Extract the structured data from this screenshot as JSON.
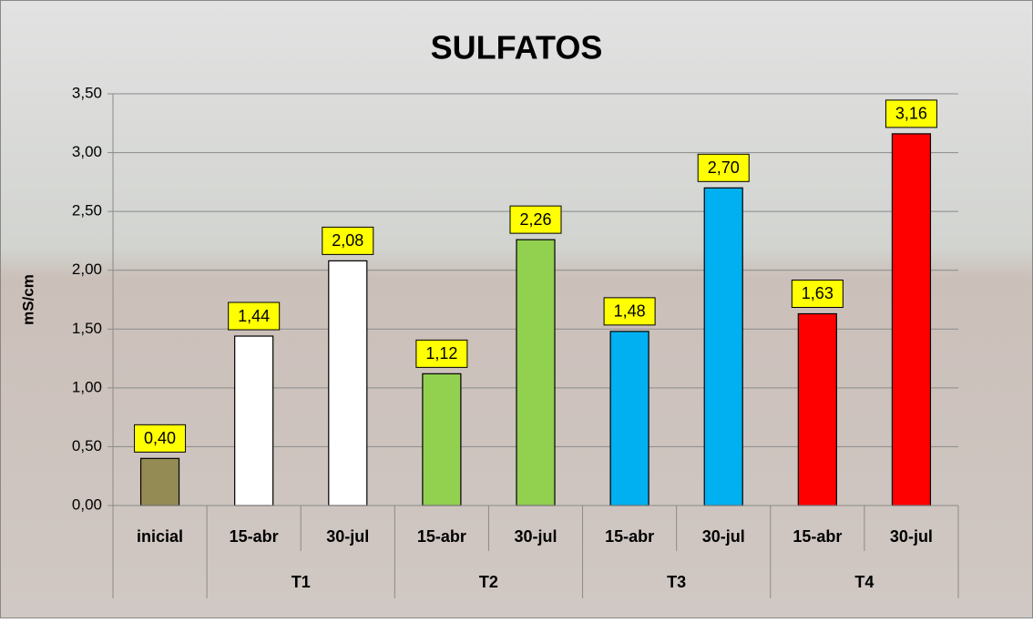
{
  "chart_data": {
    "type": "bar",
    "title": "SULFATOS",
    "y_label": "mS/cm",
    "ylim": [
      0,
      3.5
    ],
    "yticks": [
      {
        "value": 0,
        "label": "0,00"
      },
      {
        "value": 0.5,
        "label": "0,50"
      },
      {
        "value": 1,
        "label": "1,00"
      },
      {
        "value": 1.5,
        "label": "1,50"
      },
      {
        "value": 2,
        "label": "2,00"
      },
      {
        "value": 2.5,
        "label": "2,50"
      },
      {
        "value": 3,
        "label": "3,00"
      },
      {
        "value": 3.5,
        "label": "3,50"
      }
    ],
    "grid": true,
    "groups": [
      {
        "name": null,
        "color": "#948a54",
        "categories": [
          "inicial"
        ],
        "values": [
          0.4
        ],
        "value_labels": [
          "0,40"
        ]
      },
      {
        "name": "T1",
        "color": "#ffffff",
        "categories": [
          "15-abr",
          "30-jul"
        ],
        "values": [
          1.44,
          2.08
        ],
        "value_labels": [
          "1,44",
          "2,08"
        ]
      },
      {
        "name": "T2",
        "color": "#92d050",
        "categories": [
          "15-abr",
          "30-jul"
        ],
        "values": [
          1.12,
          2.26
        ],
        "value_labels": [
          "1,12",
          "2,26"
        ]
      },
      {
        "name": "T3",
        "color": "#00b0f0",
        "categories": [
          "15-abr",
          "30-jul"
        ],
        "values": [
          1.48,
          2.7
        ],
        "value_labels": [
          "1,48",
          "2,70"
        ]
      },
      {
        "name": "T4",
        "color": "#ff0000",
        "categories": [
          "15-abr",
          "30-jul"
        ],
        "values": [
          1.63,
          3.16
        ],
        "value_labels": [
          "1,63",
          "3,16"
        ]
      }
    ]
  }
}
